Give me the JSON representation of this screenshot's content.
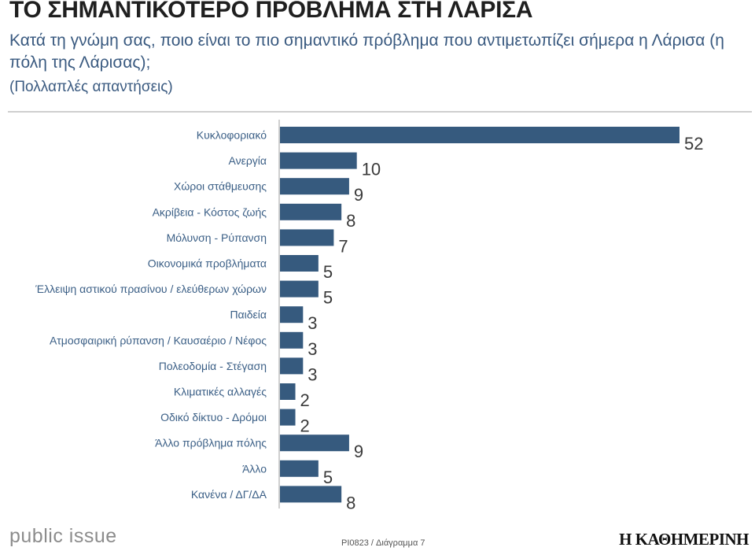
{
  "header": {
    "title": "ΤΟ ΣΗΜΑΝΤΙΚΟΤΕΡΟ ΠΡΟΒΛΗΜΑ ΣΤΗ ΛΑΡΙΣΑ",
    "subtitle": "Κατά τη γνώμη σας, ποιο είναι το πιο σημαντικό πρόβλημα που αντιμετωπίζει σήμερα η Λάρισα (η πόλη της Λάρισας);",
    "note": "(Πολλαπλές απαντήσεις)"
  },
  "chart_data": {
    "type": "bar",
    "orientation": "horizontal",
    "categories": [
      "Κυκλοφοριακό",
      "Ανεργία",
      "Χώροι στάθμευσης",
      "Ακρίβεια - Κόστος ζωής",
      "Μόλυνση - Ρύπανση",
      "Οικονομικά προβλήματα",
      "Έλλειψη αστικού πρασίνου / ελεύθερων χώρων",
      "Παιδεία",
      "Ατμοσφαιρική ρύπανση / Καυσαέριο / Νέφος",
      "Πολεοδομία - Στέγαση",
      "Κλιματικές αλλαγές",
      "Οδικό δίκτυο - Δρόμοι",
      "Άλλο πρόβλημα πόλης",
      "Άλλο",
      "Κανένα / ΔΓ/ΔΑ"
    ],
    "values": [
      52,
      10,
      9,
      8,
      7,
      5,
      5,
      3,
      3,
      3,
      2,
      2,
      9,
      5,
      8
    ],
    "xlim": [
      0,
      52
    ],
    "grid": false,
    "legend": "none",
    "bar_color": "#365a7e",
    "axis_color": "#bfbfbf"
  },
  "footer": {
    "brand": "public issue",
    "code": "PI0823 / Διάγραμμα 7",
    "newspaper": "Η ΚΑΘΗΜΕΡΙΝΗ"
  }
}
